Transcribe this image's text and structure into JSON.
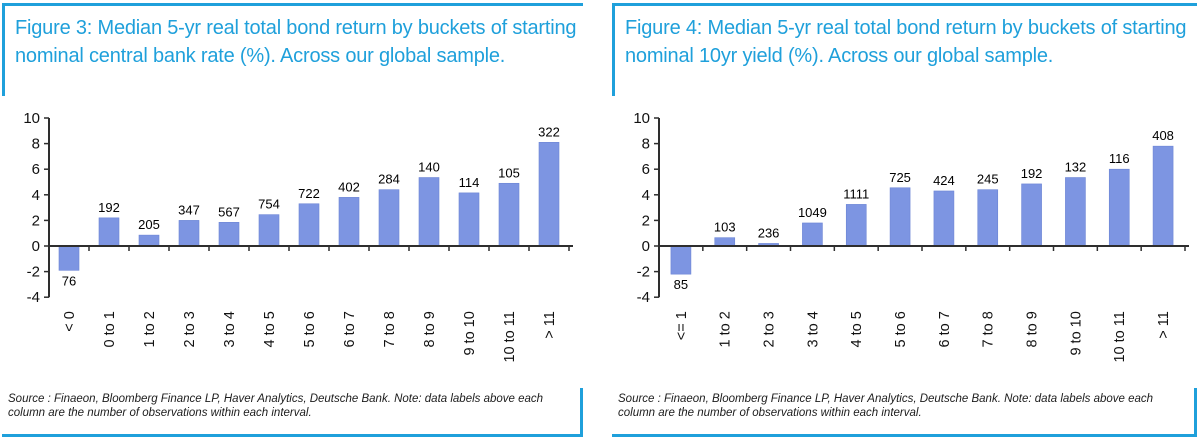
{
  "accent_color": "#1fa0db",
  "bar_color": "#7d95e2",
  "panels": [
    {
      "title": "Figure 3: Median 5-yr real total bond return by buckets of starting nominal central bank rate (%). Across our global sample.",
      "source_note": "Source : Finaeon, Bloomberg Finance LP, Haver Analytics, Deutsche Bank. Note: data labels above each column are the number of observations within each interval."
    },
    {
      "title": "Figure 4: Median 5-yr real total bond return by buckets of starting nominal 10yr yield (%). Across our global sample.",
      "source_note": "Source : Finaeon, Bloomberg Finance LP, Haver Analytics, Deutsche Bank. Note: data labels above each column are the number of observations within each interval."
    }
  ],
  "chart_data": [
    {
      "type": "bar",
      "title": "Figure 3: Median 5-yr real total bond return by buckets of starting nominal central bank rate (%). Across our global sample.",
      "xlabel": "",
      "ylabel": "",
      "categories": [
        "< 0",
        "0 to 1",
        "1 to 2",
        "2 to 3",
        "3 to 4",
        "4 to 5",
        "5 to 6",
        "6 to 7",
        "7 to 8",
        "8 to 9",
        "9 to 10",
        "10 to 11",
        "> 11"
      ],
      "values": [
        -1.9,
        2.2,
        0.85,
        2.0,
        1.85,
        2.45,
        3.3,
        3.8,
        4.4,
        5.35,
        4.15,
        4.9,
        8.1
      ],
      "bar_labels": [
        76,
        192,
        205,
        347,
        567,
        754,
        722,
        402,
        284,
        140,
        114,
        105,
        322
      ],
      "bar_labels_meaning": "number of observations within each interval",
      "ylim": [
        -4,
        10
      ],
      "yticks": [
        10,
        8,
        6,
        4,
        2,
        0,
        -2,
        -4
      ],
      "grid": false,
      "legend": false
    },
    {
      "type": "bar",
      "title": "Figure 4: Median 5-yr real total bond return by buckets of starting nominal 10yr yield (%). Across our global sample.",
      "xlabel": "",
      "ylabel": "",
      "categories": [
        "<= 1",
        "1 to 2",
        "2 to 3",
        "3 to 4",
        "4 to 5",
        "5 to 6",
        "6 to 7",
        "7 to 8",
        "8 to 9",
        "9 to 10",
        "10 to 11",
        "> 11"
      ],
      "values": [
        -2.2,
        0.65,
        0.2,
        1.8,
        3.25,
        4.55,
        4.3,
        4.4,
        4.85,
        5.35,
        6.0,
        7.8
      ],
      "bar_labels": [
        85,
        103,
        236,
        1049,
        1111,
        725,
        424,
        245,
        192,
        132,
        116,
        408
      ],
      "bar_labels_meaning": "number of observations within each interval",
      "ylim": [
        -4,
        10
      ],
      "yticks": [
        10,
        8,
        6,
        4,
        2,
        0,
        -2,
        -4
      ],
      "grid": false,
      "legend": false
    }
  ]
}
